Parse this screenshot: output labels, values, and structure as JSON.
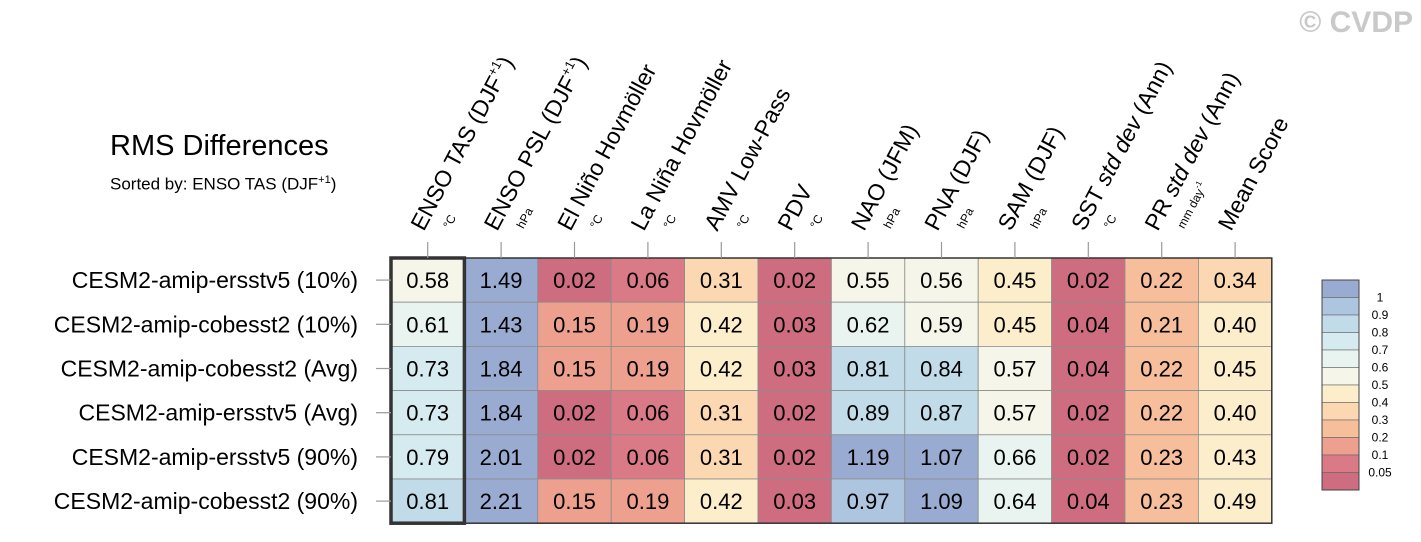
{
  "title": "RMS Differences",
  "subtitle": {
    "prefix": "Sorted by: ENSO TAS (DJF",
    "sup": "+1",
    "suffix": ")"
  },
  "watermark": "© CVDP",
  "chart_data": {
    "type": "heatmap",
    "title": "RMS Differences",
    "columns": [
      {
        "label": "ENSO TAS (DJF",
        "sup": "+1",
        "close": ")",
        "unit": "°C",
        "highlight": true
      },
      {
        "label": "ENSO PSL (DJF",
        "sup": "+1",
        "close": ")",
        "unit": "hPa"
      },
      {
        "label": "El Niño Hovmöller",
        "unit": "°C"
      },
      {
        "label": "La Niña Hovmöller",
        "unit": "°C"
      },
      {
        "label": "AMV Low-Pass",
        "unit": "°C"
      },
      {
        "label": "PDV",
        "unit": "°C"
      },
      {
        "label": "NAO (JFM)",
        "unit": "hPa"
      },
      {
        "label": "PNA (DJF)",
        "unit": "hPa"
      },
      {
        "label": "SAM (DJF)",
        "unit": "hPa"
      },
      {
        "label": "SST std dev (Ann)",
        "unit": "°C",
        "italic_part": "std dev"
      },
      {
        "label": "PR std dev (Ann)",
        "unit": "mm day",
        "unit_sup": "-1",
        "italic_part": "std dev"
      },
      {
        "label": "Mean Score",
        "unit": ""
      }
    ],
    "rows": [
      "CESM2-amip-ersstv5 (10%)",
      "CESM2-amip-cobesst2 (10%)",
      "CESM2-amip-cobesst2 (Avg)",
      "CESM2-amip-ersstv5 (Avg)",
      "CESM2-amip-ersstv5 (90%)",
      "CESM2-amip-cobesst2 (90%)"
    ],
    "values": [
      [
        "0.58",
        "1.49",
        "0.02",
        "0.06",
        "0.31",
        "0.02",
        "0.55",
        "0.56",
        "0.45",
        "0.02",
        "0.22",
        "0.34"
      ],
      [
        "0.61",
        "1.43",
        "0.15",
        "0.19",
        "0.42",
        "0.03",
        "0.62",
        "0.59",
        "0.45",
        "0.04",
        "0.21",
        "0.40"
      ],
      [
        "0.73",
        "1.84",
        "0.15",
        "0.19",
        "0.42",
        "0.03",
        "0.81",
        "0.84",
        "0.57",
        "0.04",
        "0.22",
        "0.45"
      ],
      [
        "0.73",
        "1.84",
        "0.02",
        "0.06",
        "0.31",
        "0.02",
        "0.89",
        "0.87",
        "0.57",
        "0.02",
        "0.22",
        "0.40"
      ],
      [
        "0.79",
        "2.01",
        "0.02",
        "0.06",
        "0.31",
        "0.02",
        "1.19",
        "1.07",
        "0.66",
        "0.02",
        "0.23",
        "0.43"
      ],
      [
        "0.81",
        "2.21",
        "0.15",
        "0.19",
        "0.42",
        "0.03",
        "0.97",
        "1.09",
        "0.64",
        "0.04",
        "0.23",
        "0.49"
      ]
    ],
    "colorbar": {
      "labels": [
        "1",
        "0.9",
        "0.8",
        "0.7",
        "0.6",
        "0.5",
        "0.4",
        "0.3",
        "0.2",
        "0.1",
        "0.05"
      ],
      "colors": [
        "#9aabd1",
        "#aec5df",
        "#c1dbe8",
        "#d6ebf0",
        "#e9f4f1",
        "#f6f5e9",
        "#fcedcb",
        "#fbd8b1",
        "#f7be9b",
        "#eea08e",
        "#d97a86",
        "#cf6d80"
      ]
    }
  }
}
